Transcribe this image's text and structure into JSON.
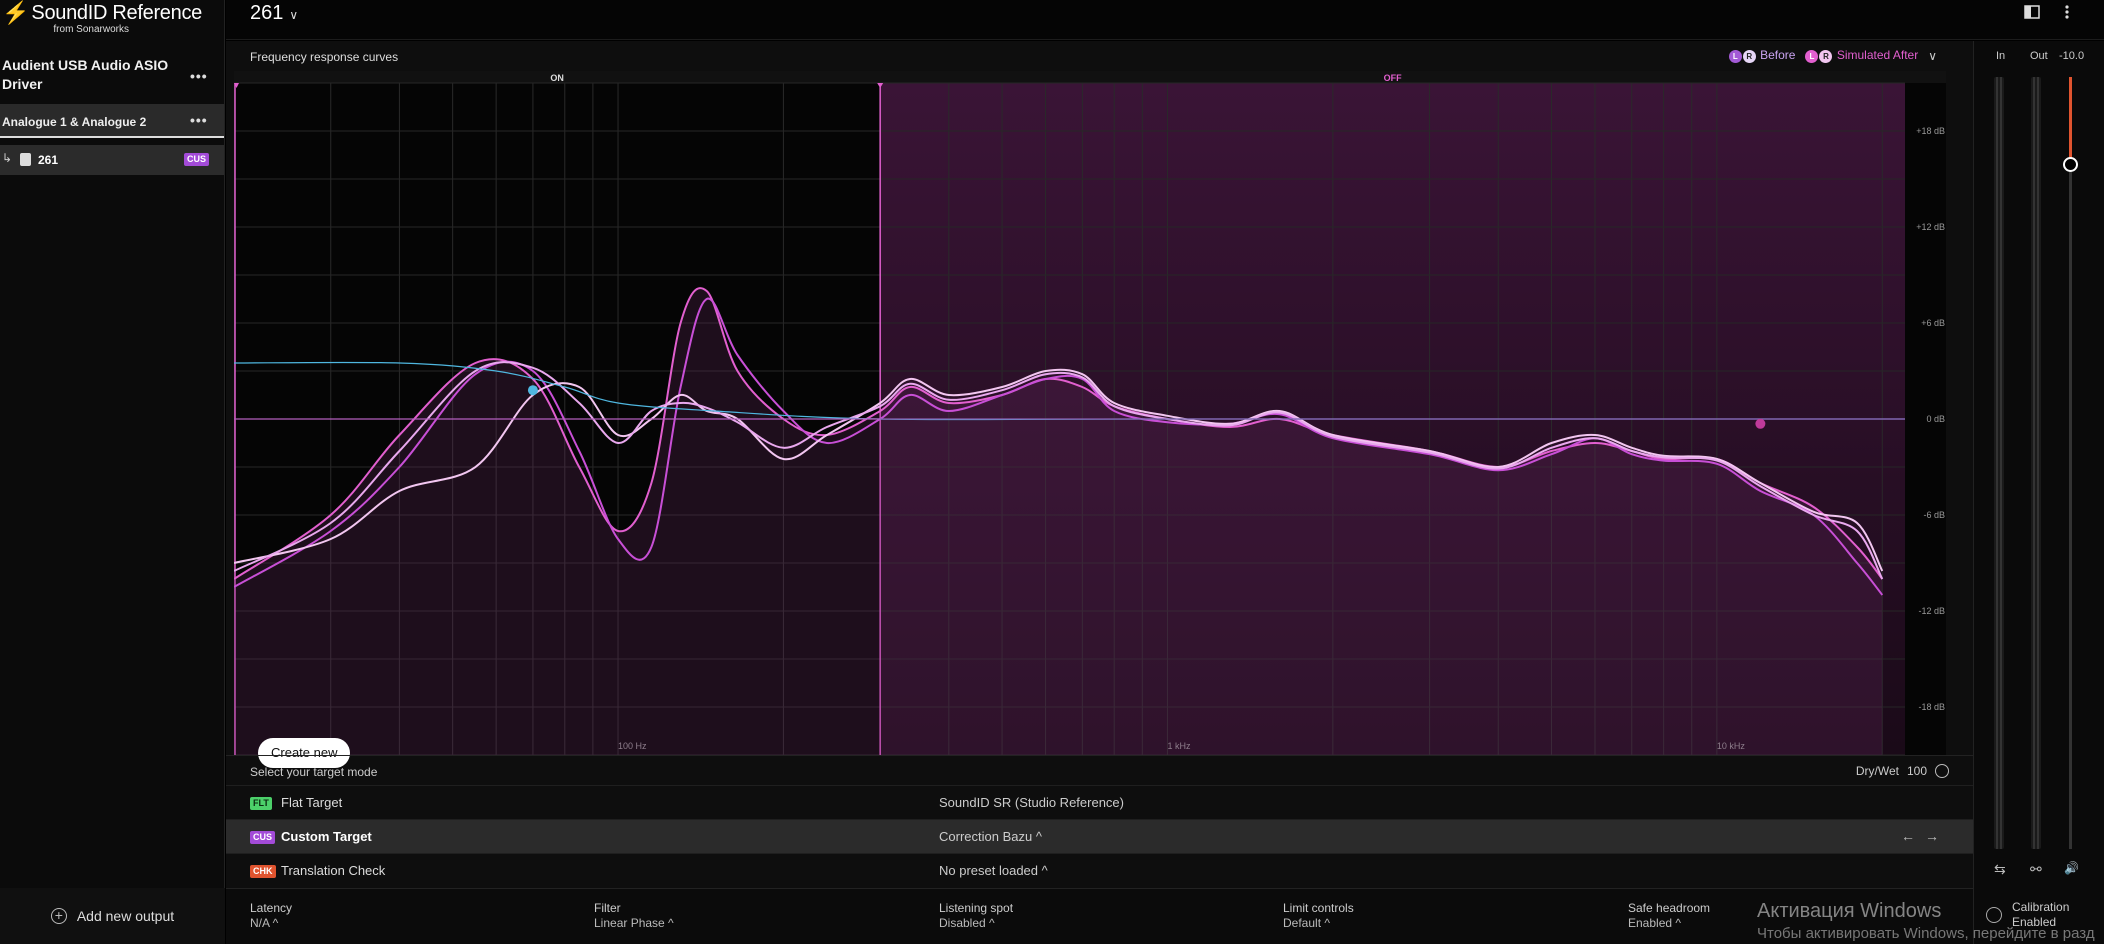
{
  "app": {
    "logo_mark": "⚡",
    "title": "SoundID Reference",
    "subtitle": "from Sonarworks"
  },
  "sidebar": {
    "device_name": "Audient USB Audio ASIO Driver",
    "more_glyph": "•••",
    "channel_label": "Analogue 1 & Analogue 2",
    "preset_arrow": "↳",
    "preset_name": "261",
    "preset_badge": "CUS",
    "add_output": "Add new output"
  },
  "header": {
    "preset_title": "261",
    "chevron": "∨"
  },
  "chart_header": {
    "title": "Frequency response curves",
    "legend_before": "Before",
    "legend_after": "Simulated After",
    "pill_l": "L",
    "pill_r": "R"
  },
  "chart_data": {
    "type": "line",
    "x_scale": "log",
    "xlim": [
      20,
      22000
    ],
    "ylim": [
      -21,
      21
    ],
    "x_ticks": [
      {
        "value": 100,
        "label": "100 Hz"
      },
      {
        "value": 1000,
        "label": "1 kHz"
      },
      {
        "value": 10000,
        "label": "10 kHz"
      }
    ],
    "y_ticks": [
      {
        "value": 18,
        "label": "+18 dB"
      },
      {
        "value": 12,
        "label": "+12 dB"
      },
      {
        "value": 6,
        "label": "+6 dB"
      },
      {
        "value": 0,
        "label": "0 dB"
      },
      {
        "value": -6,
        "label": "-6 dB"
      },
      {
        "value": -12,
        "label": "-12 dB"
      },
      {
        "value": -18,
        "label": "-18 dB"
      }
    ],
    "region_on_label": "ON",
    "region_off_label": "OFF",
    "region_split_hz": 300,
    "target_points": [
      {
        "x": 70,
        "y": 1.8
      },
      {
        "x": 12000,
        "y": -0.3
      }
    ],
    "series": [
      {
        "color": "#e25fcf",
        "points": [
          [
            20,
            -10
          ],
          [
            30,
            -6
          ],
          [
            40,
            -1
          ],
          [
            55,
            3.5
          ],
          [
            70,
            2.5
          ],
          [
            85,
            -3
          ],
          [
            100,
            -7
          ],
          [
            115,
            -4
          ],
          [
            130,
            6
          ],
          [
            145,
            8
          ],
          [
            165,
            3
          ],
          [
            200,
            0
          ],
          [
            240,
            -1
          ],
          [
            300,
            0.5
          ],
          [
            340,
            2
          ],
          [
            400,
            1
          ],
          [
            500,
            1.5
          ],
          [
            600,
            2.5
          ],
          [
            700,
            2
          ],
          [
            800,
            0.8
          ],
          [
            1000,
            0
          ],
          [
            1300,
            -0.5
          ],
          [
            1600,
            0
          ],
          [
            2000,
            -1
          ],
          [
            3000,
            -2
          ],
          [
            4000,
            -3
          ],
          [
            5000,
            -2
          ],
          [
            6000,
            -1.5
          ],
          [
            7000,
            -2
          ],
          [
            8000,
            -2.5
          ],
          [
            10000,
            -2.5
          ],
          [
            12000,
            -4
          ],
          [
            15000,
            -5.5
          ],
          [
            18000,
            -8
          ],
          [
            20000,
            -10
          ]
        ]
      },
      {
        "color": "#c84fd6",
        "points": [
          [
            20,
            -10.5
          ],
          [
            30,
            -7
          ],
          [
            40,
            -3
          ],
          [
            55,
            2.8
          ],
          [
            70,
            3
          ],
          [
            85,
            -2
          ],
          [
            100,
            -7.5
          ],
          [
            115,
            -8
          ],
          [
            130,
            2
          ],
          [
            145,
            7.5
          ],
          [
            165,
            4
          ],
          [
            200,
            0.5
          ],
          [
            240,
            -1.5
          ],
          [
            300,
            0
          ],
          [
            340,
            1.5
          ],
          [
            400,
            0.5
          ],
          [
            500,
            1.5
          ],
          [
            600,
            2.5
          ],
          [
            700,
            2.5
          ],
          [
            800,
            0.5
          ],
          [
            1000,
            -0.2
          ],
          [
            1300,
            -0.3
          ],
          [
            1600,
            0.3
          ],
          [
            2000,
            -1.2
          ],
          [
            3000,
            -2.2
          ],
          [
            4000,
            -3.2
          ],
          [
            5000,
            -2.2
          ],
          [
            6000,
            -1.2
          ],
          [
            7000,
            -2.2
          ],
          [
            8000,
            -2.6
          ],
          [
            10000,
            -2.8
          ],
          [
            12000,
            -4.5
          ],
          [
            15000,
            -6
          ],
          [
            18000,
            -9
          ],
          [
            20000,
            -11
          ]
        ]
      },
      {
        "color": "#f2c6f0",
        "points": [
          [
            20,
            -9
          ],
          [
            30,
            -7.5
          ],
          [
            40,
            -4.5
          ],
          [
            55,
            -3
          ],
          [
            70,
            1.5
          ],
          [
            85,
            2
          ],
          [
            100,
            -1
          ],
          [
            115,
            0
          ],
          [
            130,
            1.5
          ],
          [
            145,
            0.5
          ],
          [
            165,
            0
          ],
          [
            200,
            -2.5
          ],
          [
            240,
            -1
          ],
          [
            300,
            1
          ],
          [
            340,
            2.5
          ],
          [
            400,
            1.5
          ],
          [
            500,
            2
          ],
          [
            600,
            3
          ],
          [
            700,
            2.8
          ],
          [
            800,
            1
          ],
          [
            1000,
            0.2
          ],
          [
            1300,
            -0.3
          ],
          [
            1600,
            0.5
          ],
          [
            2000,
            -1
          ],
          [
            3000,
            -2
          ],
          [
            4000,
            -3
          ],
          [
            5000,
            -1.5
          ],
          [
            6000,
            -1
          ],
          [
            7000,
            -1.8
          ],
          [
            8000,
            -2.3
          ],
          [
            10000,
            -2.5
          ],
          [
            12000,
            -4
          ],
          [
            15000,
            -5.8
          ],
          [
            18000,
            -6.5
          ],
          [
            20000,
            -9.5
          ]
        ]
      },
      {
        "color": "#e9a8ee",
        "points": [
          [
            20,
            -9.5
          ],
          [
            30,
            -6.5
          ],
          [
            40,
            -2
          ],
          [
            55,
            3
          ],
          [
            70,
            3.2
          ],
          [
            85,
            1
          ],
          [
            100,
            -1.5
          ],
          [
            115,
            0.5
          ],
          [
            130,
            1
          ],
          [
            145,
            0.7
          ],
          [
            165,
            -0.2
          ],
          [
            200,
            -1.8
          ],
          [
            240,
            -0.5
          ],
          [
            300,
            0.8
          ],
          [
            340,
            2.2
          ],
          [
            400,
            1.2
          ],
          [
            500,
            1.8
          ],
          [
            600,
            2.8
          ],
          [
            700,
            2.6
          ],
          [
            800,
            0.8
          ],
          [
            1000,
            0
          ],
          [
            1300,
            -0.4
          ],
          [
            1600,
            0.4
          ],
          [
            2000,
            -1.1
          ],
          [
            3000,
            -2.1
          ],
          [
            4000,
            -3.1
          ],
          [
            5000,
            -1.8
          ],
          [
            6000,
            -1.2
          ],
          [
            7000,
            -2
          ],
          [
            8000,
            -2.4
          ],
          [
            10000,
            -2.6
          ],
          [
            12000,
            -4.2
          ],
          [
            15000,
            -6
          ],
          [
            18000,
            -7
          ],
          [
            20000,
            -10
          ]
        ]
      },
      {
        "color": "#4fb7e0",
        "points": [
          [
            20,
            3.5
          ],
          [
            40,
            3.5
          ],
          [
            60,
            3
          ],
          [
            80,
            2
          ],
          [
            100,
            1
          ],
          [
            150,
            0.5
          ],
          [
            300,
            0
          ],
          [
            1000,
            0
          ],
          [
            22000,
            0
          ]
        ]
      },
      {
        "color": "#8a5fb0",
        "points": [
          [
            20,
            0
          ],
          [
            22000,
            0
          ]
        ]
      }
    ]
  },
  "chart": {
    "create_button": "Create new"
  },
  "target": {
    "header_label": "Select your target mode",
    "drywet_label": "Dry/Wet",
    "drywet_value": "100",
    "rows": [
      {
        "badge": "FLT",
        "badge_color": "#4cd06a",
        "name": "Flat Target",
        "value": "SoundID SR (Studio Reference)"
      },
      {
        "badge": "CUS",
        "badge_color": "#a34bd8",
        "name": "Custom Target",
        "value": "Correction Bazu ^"
      },
      {
        "badge": "CHK",
        "badge_color": "#e0542f",
        "name": "Translation Check",
        "value": "No preset loaded ^"
      }
    ],
    "nav_arrows": "←→"
  },
  "bottombar": {
    "latency": {
      "label": "Latency",
      "value": "N/A ^"
    },
    "filter": {
      "label": "Filter",
      "value": "Linear Phase ^"
    },
    "listening": {
      "label": "Listening spot",
      "value": "Disabled ^"
    },
    "limit": {
      "label": "Limit controls",
      "value": "Default ^"
    },
    "headroom": {
      "label": "Safe headroom",
      "value": "Enabled ^"
    }
  },
  "meters": {
    "in_label": "In",
    "out_label": "Out",
    "volume": "-10.0",
    "calibration_label": "Calibration",
    "calibration_value": "Enabled",
    "icon_swap": "⇆",
    "icon_link": "⚯",
    "icon_speaker": "🔊"
  },
  "watermark": {
    "line1": "Активация Windows",
    "line2": "Чтобы активировать Windows, перейдите в разд"
  }
}
